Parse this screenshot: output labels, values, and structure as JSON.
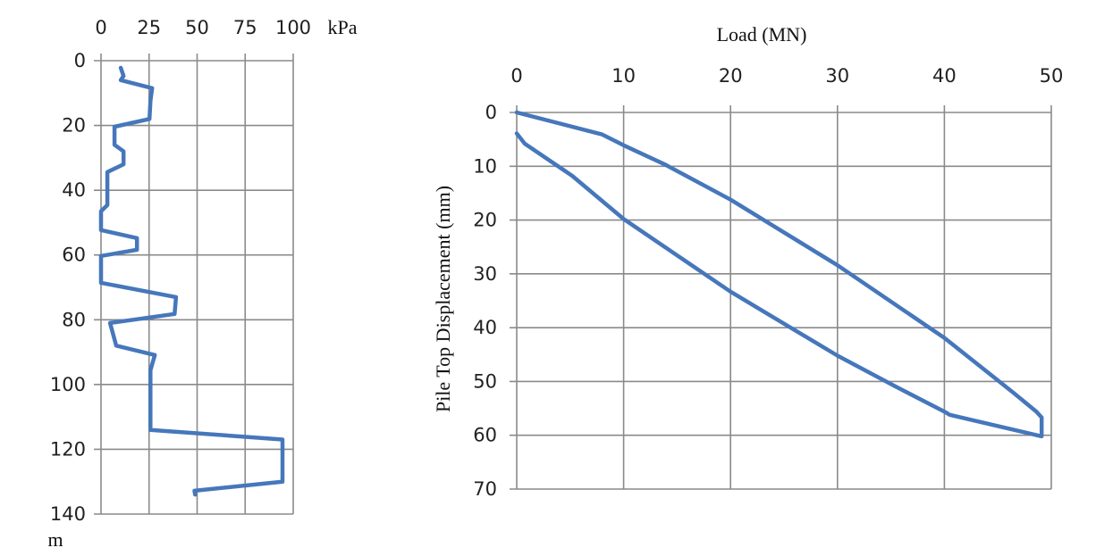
{
  "chart_data": [
    {
      "type": "line",
      "title": "",
      "xlabel": "kPa",
      "ylabel": "m",
      "xlim": [
        0,
        100
      ],
      "ylim": [
        140,
        0
      ],
      "x_axis_position": "top",
      "xticks": [
        "0",
        "25",
        "50",
        "75",
        "100"
      ],
      "yticks": [
        "0",
        "20",
        "40",
        "60",
        "80",
        "100",
        "120",
        "140"
      ],
      "grid": true,
      "color": "#4677bb",
      "series": [
        {
          "points": [
            [
              10.3,
              2.2
            ],
            [
              11.7,
              4.7
            ],
            [
              10.3,
              6
            ],
            [
              26.6,
              8.5
            ],
            [
              25.7,
              12.4
            ],
            [
              25.2,
              18
            ],
            [
              7,
              20.4
            ],
            [
              7,
              26
            ],
            [
              11.7,
              28
            ],
            [
              11.7,
              32
            ],
            [
              3.3,
              34.4
            ],
            [
              3.3,
              44.6
            ],
            [
              0,
              46.5
            ],
            [
              0,
              52.3
            ],
            [
              18.7,
              54.8
            ],
            [
              18.7,
              58.4
            ],
            [
              0,
              60.3
            ],
            [
              0,
              68.6
            ],
            [
              39,
              73
            ],
            [
              38.3,
              78.2
            ],
            [
              4.7,
              81
            ],
            [
              7.9,
              88
            ],
            [
              28,
              90.9
            ],
            [
              25.7,
              95.6
            ],
            [
              25.7,
              114
            ],
            [
              94.4,
              117
            ],
            [
              94.4,
              130
            ],
            [
              48.6,
              132.8
            ],
            [
              49,
              134
            ]
          ]
        }
      ]
    },
    {
      "type": "line",
      "title": "",
      "xlabel": "Load (MN)",
      "ylabel": "Pile Top Displacement  (mm)",
      "xlim": [
        0,
        50
      ],
      "ylim": [
        70,
        0
      ],
      "x_axis_position": "top",
      "xticks": [
        "0",
        "10",
        "20",
        "30",
        "40",
        "50"
      ],
      "yticks": [
        "0",
        "10",
        "20",
        "30",
        "40",
        "50",
        "60",
        "70"
      ],
      "grid": true,
      "color": "#4677bb",
      "series": [
        {
          "points": [
            [
              0,
              0
            ],
            [
              8,
              4.1
            ],
            [
              10,
              6.1
            ],
            [
              13.8,
              9.6
            ],
            [
              20,
              16.2
            ],
            [
              30,
              28.4
            ],
            [
              40,
              41.9
            ],
            [
              46.4,
              52
            ],
            [
              48.6,
              55.6
            ],
            [
              49.1,
              56.7
            ],
            [
              49.1,
              60.2
            ],
            [
              40.5,
              56.2
            ],
            [
              40,
              55.6
            ],
            [
              35.4,
              50.9
            ],
            [
              30,
              45.2
            ],
            [
              20,
              33.3
            ],
            [
              10,
              19.8
            ],
            [
              5.2,
              11.8
            ],
            [
              0.75,
              5.8
            ],
            [
              0,
              3.9
            ]
          ]
        }
      ]
    }
  ]
}
